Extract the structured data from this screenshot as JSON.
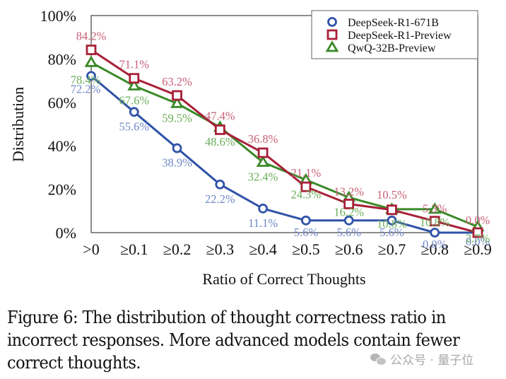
{
  "chart_data": {
    "type": "line",
    "title": "",
    "xlabel": "Ratio of Correct Thoughts",
    "ylabel": "Distribution",
    "categories": [
      ">0",
      "≥0.1",
      "≥0.2",
      "≥0.3",
      "≥0.4",
      "≥0.5",
      "≥0.6",
      "≥0.7",
      "≥0.8",
      "≥0.9"
    ],
    "ylim": [
      0,
      100
    ],
    "yticks": [
      0,
      20,
      40,
      60,
      80,
      100
    ],
    "ytick_labels": [
      "0%",
      "20%",
      "40%",
      "60%",
      "80%",
      "100%"
    ],
    "grid": false,
    "legend_position": "top-right",
    "series": [
      {
        "name": "DeepSeek-R1-671B",
        "marker": "circle",
        "color": "#2f52a8",
        "label_color": "#7088c8",
        "values": [
          72.2,
          55.6,
          38.9,
          22.2,
          11.1,
          5.6,
          5.6,
          5.6,
          0.0,
          0.0
        ],
        "labels": [
          "72.2%",
          "55.6%",
          "38.9%",
          "22.2%",
          "11.1%",
          "5.6%",
          "5.6%",
          "5.6%",
          "0.0%",
          "0.0%"
        ]
      },
      {
        "name": "DeepSeek-R1-Preview",
        "marker": "square",
        "color": "#a82038",
        "label_color": "#c8607a",
        "values": [
          84.2,
          71.1,
          63.2,
          47.4,
          36.8,
          21.1,
          13.2,
          10.5,
          5.3,
          0.0
        ],
        "labels": [
          "84.2%",
          "71.1%",
          "63.2%",
          "47.4%",
          "36.8%",
          "21.1%",
          "13.2%",
          "10.5%",
          "5.3%",
          "0.0%"
        ]
      },
      {
        "name": "QwQ-32B-Preview",
        "marker": "triangle",
        "color": "#3a8a28",
        "label_color": "#6aae58",
        "values": [
          78.4,
          67.6,
          59.5,
          48.6,
          32.4,
          24.3,
          16.2,
          10.8,
          10.8,
          2.7
        ],
        "labels": [
          "78.4%",
          "67.6%",
          "59.5%",
          "48.6%",
          "32.4%",
          "24.3%",
          "16.2%",
          "10.8%",
          "10.8%",
          "2.7%"
        ]
      }
    ]
  },
  "caption": {
    "lines": [
      "Figure 6: The distribution of thought correctness ratio in",
      "incorrect responses. More advanced models contain fewer",
      "correct thoughts."
    ]
  },
  "watermark": {
    "icon": "wechat-icon",
    "text": "公众号 · 量子位"
  }
}
